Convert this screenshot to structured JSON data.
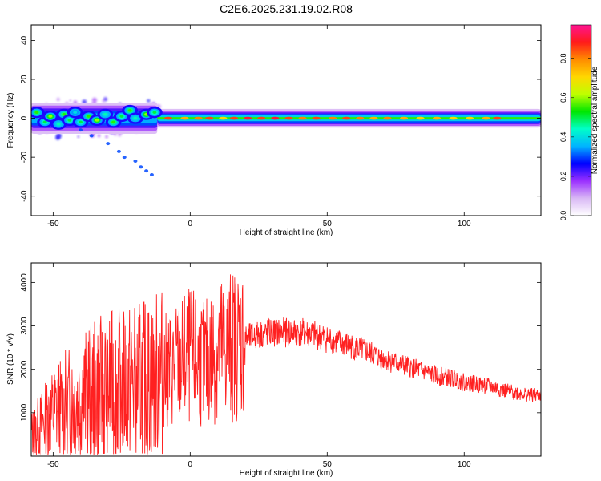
{
  "title": "C2E6.2025.231.19.02.R08",
  "chart_data": [
    {
      "type": "heatmap",
      "xlabel": "Height of straight line (km)",
      "ylabel": "Frequency (Hz)",
      "xlim": [
        -58,
        128
      ],
      "ylim": [
        -50,
        48
      ],
      "xticks": [
        -50,
        0,
        50,
        100
      ],
      "yticks": [
        -40,
        -20,
        0,
        20,
        40
      ],
      "colorbar": {
        "label": "Normalized spectral amplitude",
        "range": [
          0.0,
          0.97
        ],
        "ticks": [
          0.0,
          0.2,
          0.4,
          0.6,
          0.8
        ],
        "tick_labels": [
          "0.0",
          "0.2",
          "0.4",
          "0.6",
          "0.8"
        ],
        "colormap": [
          "#ffffff",
          "#d9b8f5",
          "#9b30ff",
          "#0000ff",
          "#00b4ff",
          "#00ffc8",
          "#00e600",
          "#bfff00",
          "#ffd700",
          "#ff8c00",
          "#ff1a1a",
          "#ff1493"
        ]
      },
      "bands": [
        {
          "x": [
            -58,
            -12
          ],
          "y_center": 0,
          "half_width_hz": 5,
          "amplitude": 0.35
        },
        {
          "x": [
            -12,
            128
          ],
          "y_center": 0,
          "half_width_hz": 3,
          "amplitude": 0.45
        }
      ],
      "blobs": [
        {
          "x": -56,
          "y": 3,
          "amp": 0.55
        },
        {
          "x": -53,
          "y": -2,
          "amp": 0.5
        },
        {
          "x": -51,
          "y": 1,
          "amp": 0.6
        },
        {
          "x": -48,
          "y": -3,
          "amp": 0.45
        },
        {
          "x": -46,
          "y": 2,
          "amp": 0.55
        },
        {
          "x": -44,
          "y": -1,
          "amp": 0.5
        },
        {
          "x": -42,
          "y": 3,
          "amp": 0.4
        },
        {
          "x": -40,
          "y": -2,
          "amp": 0.5
        },
        {
          "x": -37,
          "y": 1,
          "amp": 0.55
        },
        {
          "x": -34,
          "y": -1,
          "amp": 0.6
        },
        {
          "x": -31,
          "y": 2,
          "amp": 0.45
        },
        {
          "x": -28,
          "y": -2,
          "amp": 0.55
        },
        {
          "x": -25,
          "y": 1,
          "amp": 0.5
        },
        {
          "x": -22,
          "y": 4,
          "amp": 0.55
        },
        {
          "x": -20,
          "y": 0,
          "amp": 0.45
        },
        {
          "x": -16,
          "y": 2,
          "amp": 0.6
        },
        {
          "x": -13,
          "y": 3,
          "amp": 0.5
        }
      ],
      "ridge": [
        {
          "x": -8,
          "amp": 0.85
        },
        {
          "x": -2,
          "amp": 0.75
        },
        {
          "x": 3,
          "amp": 0.8
        },
        {
          "x": 7,
          "amp": 0.85
        },
        {
          "x": 12,
          "amp": 0.7
        },
        {
          "x": 16,
          "amp": 0.85
        },
        {
          "x": 21,
          "amp": 0.9
        },
        {
          "x": 26,
          "amp": 0.85
        },
        {
          "x": 31,
          "amp": 0.9
        },
        {
          "x": 36,
          "amp": 0.85
        },
        {
          "x": 41,
          "amp": 0.8
        },
        {
          "x": 46,
          "amp": 0.85
        },
        {
          "x": 52,
          "amp": 0.8
        },
        {
          "x": 57,
          "amp": 0.85
        },
        {
          "x": 62,
          "amp": 0.8
        },
        {
          "x": 67,
          "amp": 0.75
        },
        {
          "x": 72,
          "amp": 0.8
        },
        {
          "x": 78,
          "amp": 0.75
        },
        {
          "x": 84,
          "amp": 0.7
        },
        {
          "x": 90,
          "amp": 0.75
        },
        {
          "x": 96,
          "amp": 0.7
        },
        {
          "x": 102,
          "amp": 0.7
        },
        {
          "x": 108,
          "amp": 0.75
        },
        {
          "x": 112,
          "amp": 0.85
        }
      ],
      "chirp": [
        {
          "x": -40,
          "y": -6
        },
        {
          "x": -36,
          "y": -9
        },
        {
          "x": -30,
          "y": -13
        },
        {
          "x": -26,
          "y": -17
        },
        {
          "x": -24,
          "y": -20
        },
        {
          "x": -20,
          "y": -22
        },
        {
          "x": -18,
          "y": -25
        },
        {
          "x": -16,
          "y": -27
        },
        {
          "x": -14,
          "y": -29
        }
      ]
    },
    {
      "type": "line",
      "xlabel": "Height of straight line (km)",
      "ylabel": "SNR (10 * v/v)",
      "xlim": [
        -58,
        128
      ],
      "ylim": [
        0,
        4450
      ],
      "xticks": [
        -50,
        0,
        50,
        100
      ],
      "yticks": [
        1000,
        2000,
        3000,
        4000
      ],
      "line_color": "#ff2020",
      "series": [
        {
          "x": [
            -58,
            -50,
            -45,
            -40,
            -35,
            -30,
            -25,
            -20,
            -15,
            -10,
            -5,
            0,
            5,
            10,
            15,
            20,
            25,
            30,
            35,
            40,
            45,
            50,
            55,
            60,
            65,
            70,
            75,
            80,
            85,
            90,
            95,
            100,
            105,
            110,
            115,
            120,
            125,
            128
          ],
          "y": [
            500,
            1000,
            1200,
            1350,
            1500,
            1600,
            1650,
            1700,
            1750,
            1900,
            2100,
            2300,
            2100,
            2450,
            2550,
            2700,
            2800,
            2850,
            2850,
            2850,
            2800,
            2700,
            2600,
            2500,
            2400,
            2250,
            2150,
            2050,
            1950,
            1850,
            1800,
            1700,
            1650,
            1600,
            1500,
            1450,
            1400,
            1400
          ]
        }
      ]
    }
  ]
}
